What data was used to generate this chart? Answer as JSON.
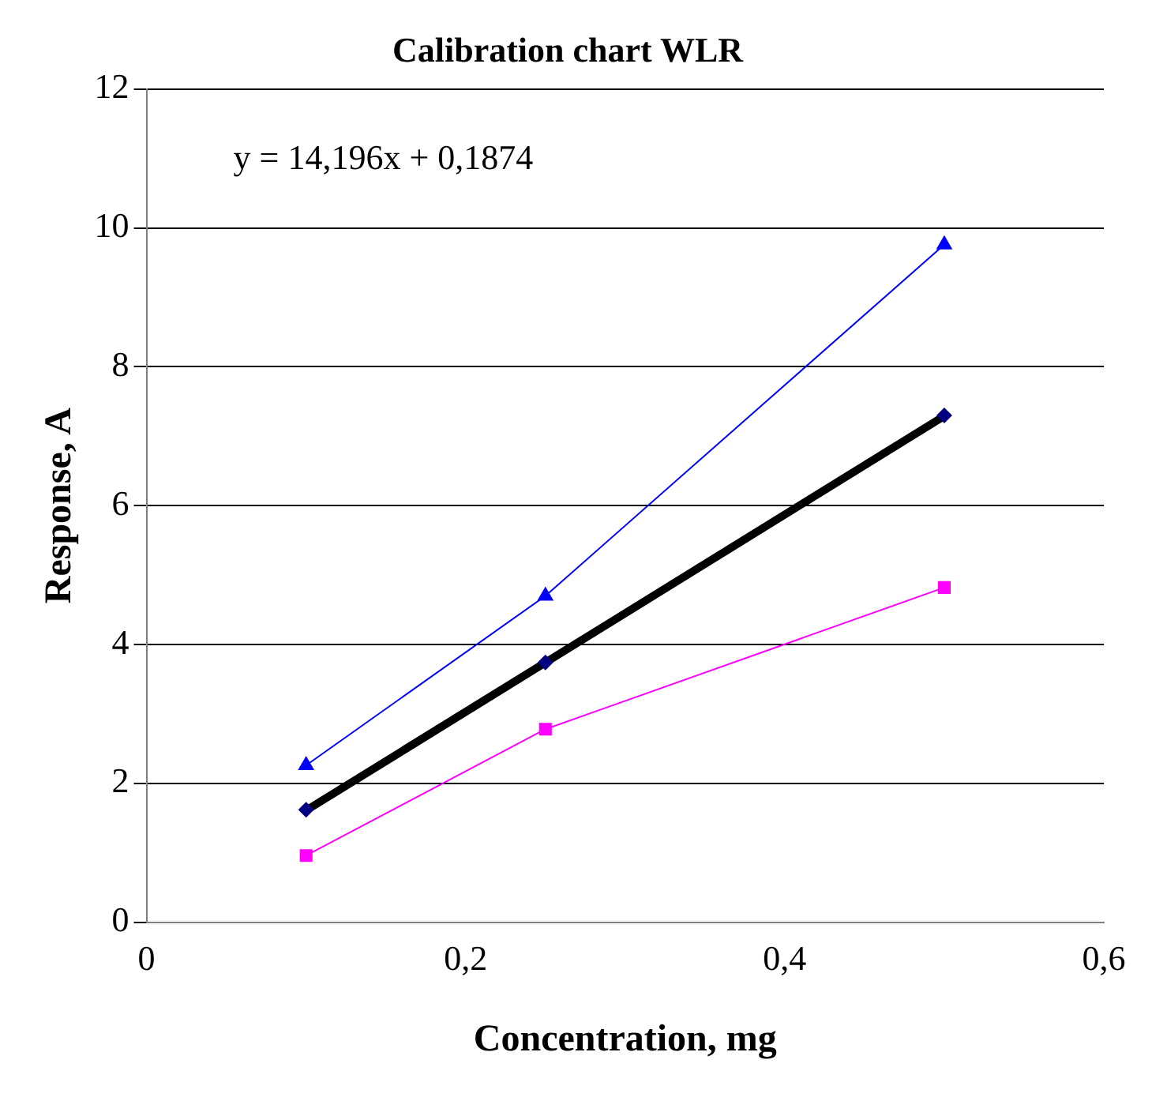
{
  "chart_data": {
    "type": "line",
    "title": "Calibration chart WLR",
    "xlabel": "Concentration, mg",
    "ylabel": "Response, A",
    "x": [
      0.1,
      0.25,
      0.5
    ],
    "series": [
      {
        "color": "#0000ff",
        "values": [
          2.26,
          4.7,
          9.76
        ],
        "marker": "triangle"
      },
      {
        "color": "#ff00ff",
        "values": [
          0.96,
          2.78,
          4.82
        ],
        "marker": "square"
      },
      {
        "type": "scatter",
        "color": "#000080",
        "values": [
          1.62,
          3.74,
          7.3
        ],
        "marker": "diamond"
      },
      {
        "type": "line",
        "color": "#000000",
        "x": [
          0.1,
          0.5
        ],
        "values": [
          1.61,
          7.29
        ],
        "marker": "none"
      }
    ],
    "xlim": [
      0,
      0.6
    ],
    "xticks": [
      {
        "value": 0,
        "label": "0"
      },
      {
        "value": 0.2,
        "label": "0,2"
      },
      {
        "value": 0.4,
        "label": "0,4"
      },
      {
        "value": 0.6,
        "label": "0,6"
      }
    ],
    "ylim": [
      0,
      12
    ],
    "yticks": [
      0,
      2,
      4,
      6,
      8,
      10,
      12
    ],
    "grid": "y",
    "legend": false,
    "annotations": [
      "y = 14,196x + 0,1874"
    ]
  }
}
